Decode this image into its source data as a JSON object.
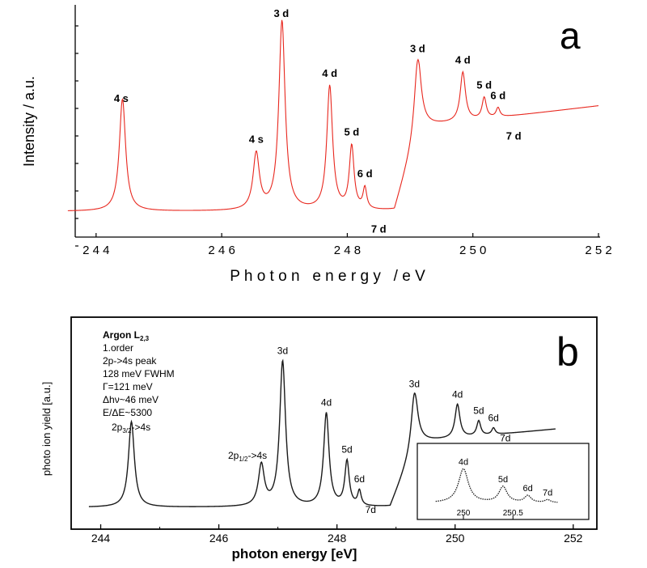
{
  "panel_a": {
    "letter": "a",
    "ylabel": "Intensity / a.u.",
    "xlabel": "P h o t o n   e n e r g y   / e V",
    "tick_labels": [
      "2 4 4",
      "2 4 6",
      "2 4 8",
      "2 5 0",
      "2 5 2"
    ],
    "line_color": "#e8271e",
    "peak_labels": [
      {
        "text": "4 s",
        "x": 244.4
      },
      {
        "text": "4 s",
        "x": 246.55
      },
      {
        "text": "3 d",
        "x": 246.95
      },
      {
        "text": "4 d",
        "x": 247.72
      },
      {
        "text": "5 d",
        "x": 248.07
      },
      {
        "text": "6 d",
        "x": 248.28
      },
      {
        "text": "7 d",
        "x": 248.5
      },
      {
        "text": "3 d",
        "x": 249.12
      },
      {
        "text": "4 d",
        "x": 249.84
      },
      {
        "text": "5 d",
        "x": 250.18
      },
      {
        "text": "6 d",
        "x": 250.4
      },
      {
        "text": "7 d",
        "x": 250.65
      }
    ]
  },
  "panel_b": {
    "letter": "b",
    "ylabel": "photo ion yield [a.u.]",
    "xlabel": "photon energy [eV]",
    "tick_labels": [
      "244",
      "246",
      "248",
      "250",
      "252"
    ],
    "line_color": "#1a1a1a",
    "info": {
      "title": "Argon L",
      "title_sub": "2,3",
      "lines": [
        "1.order",
        "2p->4s peak",
        "128 meV FWHM",
        "Γ=121 meV",
        "Δhν~46 meV",
        "E/ΔE~5300"
      ]
    },
    "peak_labels": [
      {
        "text": "3d",
        "x": 247.08
      },
      {
        "text": "4d",
        "x": 247.82
      },
      {
        "text": "5d",
        "x": 248.17
      },
      {
        "text": "6d",
        "x": 248.38
      },
      {
        "text": "7d",
        "x": 248.57
      },
      {
        "text": "3d",
        "x": 249.31
      },
      {
        "text": "4d",
        "x": 250.04
      },
      {
        "text": "5d",
        "x": 250.4
      },
      {
        "text": "6d",
        "x": 250.65
      },
      {
        "text": "7d",
        "x": 250.85
      }
    ],
    "assign_left": {
      "main": "2p",
      "sub": "3/2",
      "tail": "->4s"
    },
    "assign_mid": {
      "main": "2p",
      "sub": "1/2",
      "tail": "->4s"
    },
    "inset": {
      "tick_labels": [
        "250",
        "250.5"
      ],
      "peak_labels": [
        "4d",
        "5d",
        "6d",
        "7d"
      ]
    }
  },
  "chart_data": [
    {
      "type": "line",
      "panel": "a",
      "xlabel": "Photon energy / eV",
      "ylabel": "Intensity / a.u.",
      "xlim": [
        243.5,
        252
      ],
      "ylim": [
        0,
        100
      ],
      "x_ticks": [
        244,
        246,
        248,
        250,
        252
      ],
      "series": [
        {
          "color": "#e8271e",
          "peaks": [
            {
              "x": 244.42,
              "y": 48,
              "w": 0.06,
              "label": "4 s"
            },
            {
              "x": 246.55,
              "y": 24,
              "w": 0.06,
              "label": "4 s"
            },
            {
              "x": 246.96,
              "y": 81,
              "w": 0.06,
              "label": "3 d"
            },
            {
              "x": 247.72,
              "y": 53,
              "w": 0.055,
              "label": "4 d"
            },
            {
              "x": 248.07,
              "y": 27,
              "w": 0.045,
              "label": "5 d"
            },
            {
              "x": 248.28,
              "y": 9,
              "w": 0.035,
              "label": "6 d"
            },
            {
              "x": 249.12,
              "y": 31,
              "w": 0.065,
              "label": "3 d"
            },
            {
              "x": 249.84,
              "y": 21,
              "w": 0.05,
              "label": "4 d"
            },
            {
              "x": 250.18,
              "y": 9,
              "w": 0.04,
              "label": "5 d"
            },
            {
              "x": 250.4,
              "y": 4,
              "w": 0.035,
              "label": "6 d"
            }
          ],
          "continuum": {
            "x0": 248.75,
            "x1": 249.15,
            "height": 36,
            "slope_per_eV": 3.2
          },
          "baseline": 11
        }
      ]
    },
    {
      "type": "line",
      "panel": "b",
      "xlabel": "photon energy [eV]",
      "ylabel": "photo ion yield [a.u.]",
      "xlim": [
        243.5,
        252.4
      ],
      "ylim": [
        0,
        100
      ],
      "x_ticks": [
        244,
        246,
        248,
        250,
        252
      ],
      "series": [
        {
          "color": "#1a1a1a",
          "peaks": [
            {
              "x": 244.52,
              "y": 46,
              "w": 0.06,
              "label": "2p3/2->4s"
            },
            {
              "x": 246.72,
              "y": 22,
              "w": 0.06,
              "label": "2p1/2->4s"
            },
            {
              "x": 247.08,
              "y": 78,
              "w": 0.06,
              "label": "3d"
            },
            {
              "x": 247.82,
              "y": 50,
              "w": 0.055,
              "label": "4d"
            },
            {
              "x": 248.17,
              "y": 24,
              "w": 0.045,
              "label": "5d"
            },
            {
              "x": 248.38,
              "y": 8,
              "w": 0.035,
              "label": "6d"
            },
            {
              "x": 249.31,
              "y": 29,
              "w": 0.065,
              "label": "3d"
            },
            {
              "x": 250.04,
              "y": 18,
              "w": 0.05,
              "label": "4d"
            },
            {
              "x": 250.4,
              "y": 8,
              "w": 0.04,
              "label": "5d"
            },
            {
              "x": 250.65,
              "y": 3.5,
              "w": 0.035,
              "label": "6d"
            }
          ],
          "continuum": {
            "x0": 248.9,
            "x1": 249.35,
            "height": 35,
            "slope_per_eV": 3
          },
          "baseline": 10
        }
      ],
      "inset": {
        "xlim": [
          249.6,
          251.2
        ],
        "x_ticks": [
          250,
          250.5
        ],
        "peaks": [
          {
            "x": 250.0,
            "y": 60,
            "w": 0.06,
            "label": "4d"
          },
          {
            "x": 250.4,
            "y": 28,
            "w": 0.05,
            "label": "5d"
          },
          {
            "x": 250.65,
            "y": 12,
            "w": 0.04,
            "label": "6d"
          },
          {
            "x": 250.85,
            "y": 5,
            "w": 0.035,
            "label": "7d"
          }
        ]
      }
    }
  ]
}
